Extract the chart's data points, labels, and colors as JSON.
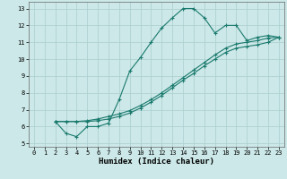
{
  "xlabel": "Humidex (Indice chaleur)",
  "xlim": [
    -0.5,
    23.5
  ],
  "ylim": [
    4.8,
    13.4
  ],
  "xticks": [
    0,
    1,
    2,
    3,
    4,
    5,
    6,
    7,
    8,
    9,
    10,
    11,
    12,
    13,
    14,
    15,
    16,
    17,
    18,
    19,
    20,
    21,
    22,
    23
  ],
  "yticks": [
    5,
    6,
    7,
    8,
    9,
    10,
    11,
    12,
    13
  ],
  "line1_x": [
    2,
    3,
    4,
    5,
    6,
    7,
    8,
    9,
    10,
    11,
    12,
    13,
    14,
    15,
    16,
    17,
    18,
    19,
    20,
    21,
    22,
    23
  ],
  "line1_y": [
    6.3,
    5.6,
    5.4,
    6.0,
    6.0,
    6.2,
    7.6,
    9.3,
    10.1,
    11.0,
    11.85,
    12.45,
    13.0,
    13.0,
    12.45,
    11.55,
    12.0,
    12.0,
    11.1,
    11.3,
    11.4,
    11.3
  ],
  "line2_x": [
    2,
    3,
    4,
    5,
    6,
    7,
    8,
    9,
    10,
    11,
    12,
    13,
    14,
    15,
    16,
    17,
    18,
    19,
    20,
    21,
    22,
    23
  ],
  "line2_y": [
    6.3,
    6.3,
    6.3,
    6.35,
    6.45,
    6.6,
    6.75,
    6.95,
    7.25,
    7.6,
    8.0,
    8.45,
    8.9,
    9.35,
    9.8,
    10.25,
    10.65,
    10.9,
    11.0,
    11.1,
    11.25,
    11.3
  ],
  "line3_x": [
    2,
    3,
    4,
    5,
    6,
    7,
    8,
    9,
    10,
    11,
    12,
    13,
    14,
    15,
    16,
    17,
    18,
    19,
    20,
    21,
    22,
    23
  ],
  "line3_y": [
    6.3,
    6.3,
    6.3,
    6.3,
    6.35,
    6.45,
    6.6,
    6.8,
    7.1,
    7.45,
    7.85,
    8.3,
    8.75,
    9.15,
    9.6,
    10.0,
    10.4,
    10.65,
    10.75,
    10.85,
    11.0,
    11.3
  ],
  "line_color": "#1a7a6e",
  "bg_color": "#cce8e8",
  "grid_color": "#aacece",
  "tick_fontsize": 5.0,
  "label_fontsize": 6.5,
  "marker": "+"
}
